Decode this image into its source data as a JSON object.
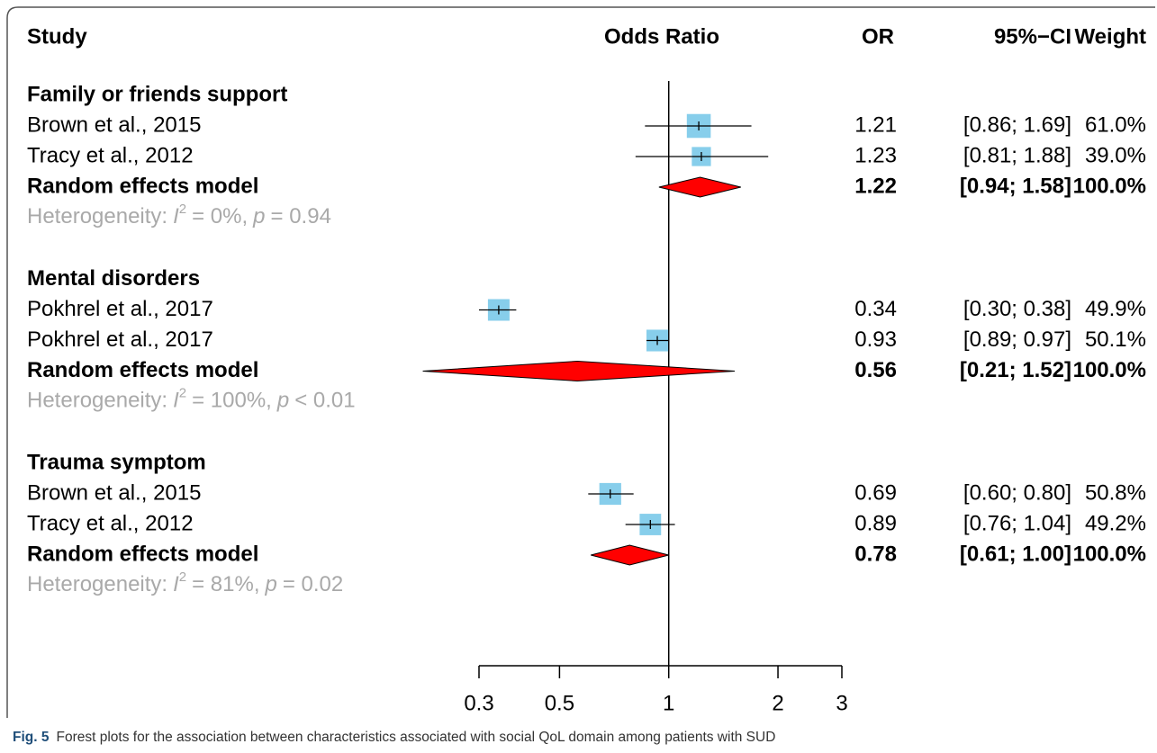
{
  "chart_data": {
    "type": "forest",
    "headers": {
      "study": "Study",
      "plot": "Odds Ratio",
      "or": "OR",
      "ci": "95%−CI",
      "weight": "Weight"
    },
    "xlim": [
      0.3,
      3
    ],
    "xticks": [
      0.3,
      0.5,
      1,
      2,
      3
    ],
    "log_x": true,
    "reference_line": 1,
    "study_color": "#87ceeb",
    "pooled_color": "#ff0000",
    "subgroup_text_color": "#a9a9a9",
    "groups": [
      {
        "name": "Family or friends support",
        "studies": [
          {
            "name": "Brown et al., 2015",
            "or": 1.21,
            "lower": 0.86,
            "upper": 1.69,
            "ci_label": "[0.86; 1.69]",
            "weight": 61.0,
            "weight_label": "61.0%"
          },
          {
            "name": "Tracy et al., 2012",
            "or": 1.23,
            "lower": 0.81,
            "upper": 1.88,
            "ci_label": "[0.81; 1.88]",
            "weight": 39.0,
            "weight_label": "39.0%"
          }
        ],
        "pooled": {
          "name": "Random effects model",
          "or": 1.22,
          "lower": 0.94,
          "upper": 1.58,
          "ci_label": "[0.94; 1.58]",
          "weight": 100.0,
          "weight_label": "100.0%"
        },
        "heterogeneity": {
          "label": "Heterogeneity:",
          "i2_symbol": "I",
          "i2_exp": "2",
          "i2": "= 0%,",
          "p_symbol": "p",
          "p": "= 0.94"
        }
      },
      {
        "name": "Mental disorders",
        "studies": [
          {
            "name": "Pokhrel et al., 2017",
            "or": 0.34,
            "lower": 0.3,
            "upper": 0.38,
            "ci_label": "[0.30; 0.38]",
            "weight": 49.9,
            "weight_label": "49.9%"
          },
          {
            "name": "Pokhrel et al., 2017",
            "or": 0.93,
            "lower": 0.89,
            "upper": 0.97,
            "ci_label": "[0.89; 0.97]",
            "weight": 50.1,
            "weight_label": "50.1%"
          }
        ],
        "pooled": {
          "name": "Random effects model",
          "or": 0.56,
          "lower": 0.21,
          "upper": 1.52,
          "ci_label": "[0.21; 1.52]",
          "weight": 100.0,
          "weight_label": "100.0%"
        },
        "heterogeneity": {
          "label": "Heterogeneity:",
          "i2_symbol": "I",
          "i2_exp": "2",
          "i2": "= 100%,",
          "p_symbol": "p",
          "p": "< 0.01"
        }
      },
      {
        "name": "Trauma symptom",
        "studies": [
          {
            "name": "Brown et al., 2015",
            "or": 0.69,
            "lower": 0.6,
            "upper": 0.8,
            "ci_label": "[0.60; 0.80]",
            "weight": 50.8,
            "weight_label": "50.8%"
          },
          {
            "name": "Tracy et al., 2012",
            "or": 0.89,
            "lower": 0.76,
            "upper": 1.04,
            "ci_label": "[0.76; 1.04]",
            "weight": 49.2,
            "weight_label": "49.2%"
          }
        ],
        "pooled": {
          "name": "Random effects model",
          "or": 0.78,
          "lower": 0.61,
          "upper": 1.0,
          "ci_label": "[0.61; 1.00]",
          "weight": 100.0,
          "weight_label": "100.0%"
        },
        "heterogeneity": {
          "label": "Heterogeneity:",
          "i2_symbol": "I",
          "i2_exp": "2",
          "i2": "= 81%,",
          "p_symbol": "p",
          "p": "= 0.02"
        }
      }
    ],
    "caption_label": "Fig. 5",
    "caption": "Forest plots for the association between characteristics associated with social QoL domain among patients with SUD"
  }
}
